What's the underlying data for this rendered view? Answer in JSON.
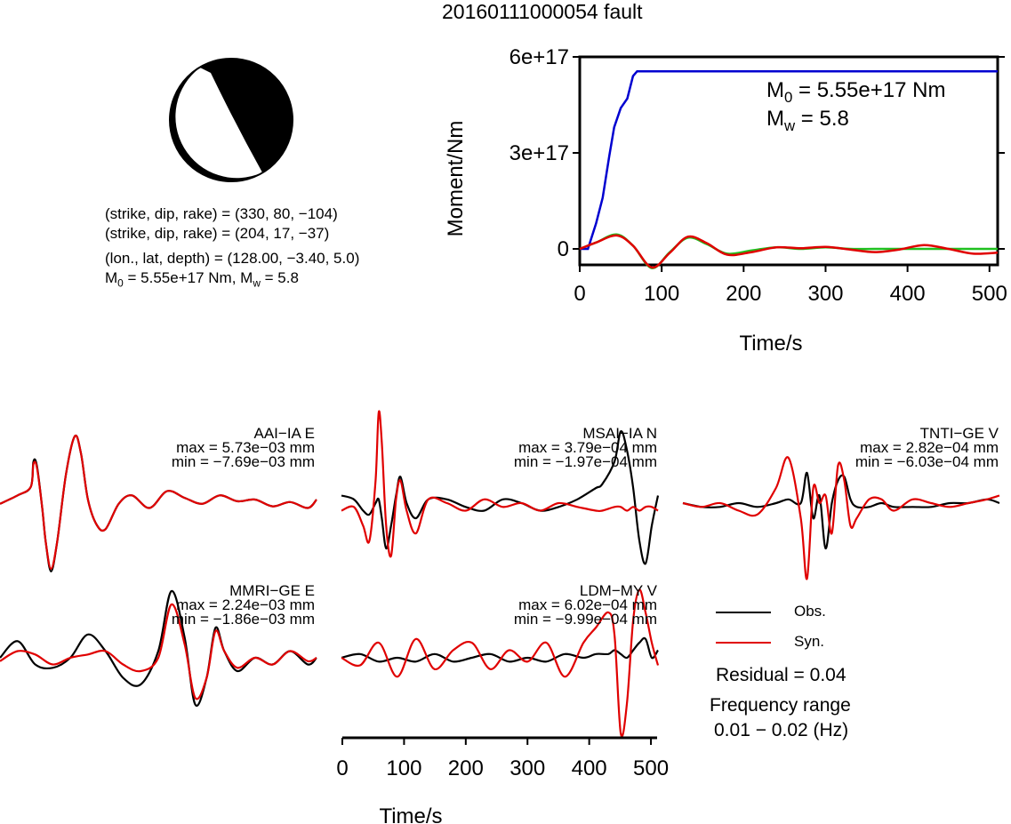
{
  "title": "20160111000054 fault",
  "focal": {
    "plane1": "(strike, dip, rake) = (330, 80, −104)",
    "plane2": "(strike, dip, rake) = (204, 17, −37)",
    "location": "(lon., lat, depth) = (128.00, −3.40, 5.0)",
    "m0_prefix": "M",
    "m0_sub": "0",
    "m0_rest": " = 5.55e+17 Nm, M",
    "mw_sub": "w",
    "mw_rest": " = 5.8"
  },
  "moment_annotation": {
    "m0_prefix": "M",
    "m0_sub": "0",
    "m0_rest": " = 5.55e+17 Nm",
    "mw_prefix": "M",
    "mw_sub": "w",
    "mw_rest": " = 5.8"
  },
  "stations": [
    {
      "name": "AAI−IA E",
      "max": "max = 5.73e−03 mm",
      "min": "min = −7.69e−03 mm"
    },
    {
      "name": "MSAI−IA N",
      "max": "max = 3.79e−04 mm",
      "min": "min = −1.97e−04 mm"
    },
    {
      "name": "TNTI−GE V",
      "max": "max = 2.82e−04 mm",
      "min": "min = −6.03e−04 mm"
    },
    {
      "name": "MMRI−GE E",
      "max": "max = 2.24e−03 mm",
      "min": "min = −1.86e−03 mm"
    },
    {
      "name": "LDM−MY V",
      "max": "max = 6.02e−04 mm",
      "min": "min = −9.99e−04 mm"
    }
  ],
  "legend": {
    "obs": "Obs.",
    "syn": "Syn."
  },
  "residual": "Residual = 0.04",
  "freq_label": "Frequency range",
  "freq_value": "0.01 − 0.02 (Hz)",
  "colors": {
    "obs": "#000000",
    "syn": "#e00000",
    "moment": "#0000d0",
    "green": "#20c020"
  },
  "chart_data": [
    {
      "type": "line",
      "title": "",
      "xlabel": "Time/s",
      "ylabel": "Moment/Nm",
      "xlim": [
        0,
        510
      ],
      "ylim": [
        -5e+16,
        6e+17
      ],
      "xticks": [
        0,
        100,
        200,
        300,
        400,
        500
      ],
      "yticks": [
        0,
        3e+17,
        6e+17
      ],
      "ytick_labels": [
        "0",
        "3e+17",
        "6e+17"
      ],
      "series": [
        {
          "x": [
            0,
            10,
            20,
            28,
            36,
            42,
            50,
            58,
            65,
            70,
            510
          ],
          "values": [
            0,
            0,
            8e+16,
            1.6e+17,
            2.9e+17,
            3.8e+17,
            4.4e+17,
            4.7e+17,
            5.4e+17,
            5.55e+17,
            5.55e+17
          ]
        },
        {
          "x": [
            0,
            20,
            45,
            65,
            88,
            110,
            132,
            155,
            180,
            210,
            240,
            270,
            300,
            330,
            360,
            390,
            420,
            450,
            480,
            510
          ],
          "values": [
            0,
            2e+16,
            4.5e+16,
            1e+16,
            -6e+16,
            -1e+16,
            3.5e+16,
            1.5e+16,
            -1.5e+16,
            -5000000000000000.0,
            5000000000000000.0,
            0.0,
            5000000000000000.0,
            0.0,
            0.0,
            0.0,
            0.0,
            0.0,
            0.0,
            0.0
          ]
        },
        {
          "x": [
            0,
            20,
            45,
            65,
            88,
            110,
            132,
            155,
            180,
            210,
            240,
            270,
            300,
            330,
            360,
            390,
            420,
            450,
            480,
            510
          ],
          "values": [
            0,
            2e+16,
            4.2e+16,
            1e+16,
            -5.8e+16,
            -1.2e+16,
            3.8e+16,
            1.8e+16,
            -1.8e+16,
            -1e+16,
            5000000000000000.0,
            2000000000000000.0,
            6000000000000000.0,
            -2000000000000000.0,
            -1e+16,
            -2000000000000000.0,
            1.2e+16,
            0.0,
            -1.5e+16,
            -1.2e+16
          ]
        }
      ]
    },
    {
      "type": "line",
      "xlabel": "Time/s",
      "xlim": [
        0,
        510
      ],
      "xticks": [
        0,
        100,
        200,
        300,
        400,
        500
      ],
      "traces": [
        {
          "station": "AAI-IA E",
          "x": [
            0,
            20,
            35,
            38,
            42,
            48,
            52,
            58,
            65,
            75,
            85,
            92,
            100,
            110,
            120,
            135,
            150,
            170,
            190,
            210,
            230,
            250,
            270,
            290,
            310,
            330,
            350,
            360
          ],
          "obs": [
            -0.05,
            0.05,
            0.15,
            0.45,
            0.4,
            -0.1,
            -0.5,
            -0.85,
            -0.5,
            0.3,
            0.75,
            0.55,
            0.0,
            -0.3,
            -0.35,
            -0.05,
            0.05,
            -0.1,
            0.1,
            0.02,
            -0.05,
            0.05,
            -0.02,
            0.0,
            -0.08,
            -0.03,
            -0.1,
            0.0
          ],
          "syn": [
            -0.05,
            0.05,
            0.15,
            0.42,
            0.38,
            -0.1,
            -0.5,
            -0.82,
            -0.5,
            0.3,
            0.75,
            0.55,
            0.0,
            -0.3,
            -0.35,
            -0.05,
            0.05,
            -0.1,
            0.1,
            0.02,
            -0.05,
            0.05,
            -0.02,
            0.0,
            -0.08,
            -0.03,
            -0.1,
            0.0
          ]
        },
        {
          "station": "MSAI-IA N",
          "x": [
            0,
            20,
            35,
            45,
            55,
            60,
            65,
            72,
            80,
            88,
            95,
            105,
            120,
            140,
            170,
            200,
            230,
            260,
            290,
            320,
            350,
            380,
            410,
            420,
            440,
            450,
            460,
            470,
            480,
            490,
            500,
            510
          ],
          "obs": [
            0.1,
            0.05,
            -0.1,
            -0.15,
            0.0,
            0.05,
            -0.2,
            -0.6,
            -0.3,
            0.1,
            0.35,
            0.0,
            -0.2,
            0.05,
            0.05,
            -0.05,
            -0.1,
            0.05,
            0.0,
            -0.1,
            -0.05,
            0.05,
            0.2,
            0.25,
            0.55,
            0.95,
            0.7,
            0.2,
            -0.5,
            -0.8,
            -0.3,
            0.1
          ],
          "syn": [
            -0.1,
            -0.05,
            -0.3,
            -0.5,
            0.3,
            1.2,
            0.8,
            -0.3,
            -0.7,
            0.05,
            0.3,
            -0.1,
            -0.4,
            0.05,
            0.0,
            -0.1,
            0.05,
            -0.05,
            0.0,
            -0.1,
            0.0,
            -0.05,
            -0.1,
            -0.1,
            -0.05,
            -0.05,
            -0.1,
            -0.05,
            -0.1,
            -0.05,
            -0.05,
            -0.1
          ]
        },
        {
          "station": "TNTI-GE V",
          "x": [
            0,
            30,
            60,
            90,
            120,
            150,
            170,
            190,
            200,
            210,
            220,
            230,
            240,
            250,
            260,
            270,
            280,
            300,
            320,
            340,
            370,
            400,
            430,
            460,
            490,
            510
          ],
          "obs": [
            0.0,
            -0.05,
            -0.05,
            0.0,
            -0.05,
            0.0,
            0.05,
            0.0,
            0.4,
            -0.2,
            0.1,
            -0.6,
            0.0,
            0.3,
            0.35,
            0.05,
            -0.05,
            -0.05,
            0.0,
            -0.05,
            -0.05,
            -0.05,
            0.0,
            0.0,
            0.05,
            0.0
          ],
          "syn": [
            0.0,
            -0.05,
            0.0,
            -0.1,
            -0.15,
            0.2,
            0.6,
            -0.2,
            -1.0,
            0.2,
            0.0,
            0.1,
            -0.4,
            0.5,
            0.3,
            -0.3,
            -0.2,
            0.05,
            0.05,
            -0.1,
            0.05,
            0.0,
            -0.05,
            0.0,
            0.05,
            0.1
          ]
        },
        {
          "station": "MMRI-GE E",
          "x": [
            0,
            20,
            40,
            60,
            80,
            100,
            120,
            140,
            160,
            180,
            195,
            210,
            222,
            235,
            245,
            255,
            270,
            290,
            310,
            330,
            350,
            360
          ],
          "obs": [
            0.0,
            0.25,
            -0.1,
            -0.15,
            0.0,
            0.35,
            0.1,
            -0.3,
            -0.4,
            0.1,
            1.0,
            0.3,
            -0.7,
            -0.3,
            0.45,
            0.1,
            -0.2,
            0.0,
            -0.1,
            0.1,
            -0.1,
            0.0
          ],
          "syn": [
            -0.05,
            0.1,
            0.05,
            -0.1,
            0.0,
            0.05,
            0.1,
            -0.1,
            -0.2,
            0.0,
            0.8,
            0.2,
            -0.6,
            -0.3,
            0.4,
            0.1,
            -0.15,
            0.0,
            -0.1,
            0.1,
            -0.05,
            0.0
          ]
        },
        {
          "station": "LDM-MY V",
          "x": [
            0,
            30,
            60,
            90,
            120,
            150,
            180,
            210,
            240,
            270,
            300,
            330,
            360,
            390,
            410,
            430,
            440,
            450,
            460,
            470,
            480,
            490,
            500,
            510
          ],
          "obs": [
            0.0,
            0.05,
            -0.05,
            0.0,
            -0.05,
            0.05,
            -0.05,
            0.0,
            0.05,
            -0.05,
            0.0,
            -0.05,
            0.05,
            0.0,
            0.05,
            0.05,
            0.1,
            0.05,
            0.0,
            0.1,
            0.2,
            0.25,
            0.0,
            0.1
          ],
          "syn": [
            0.0,
            -0.1,
            0.2,
            -0.25,
            0.25,
            -0.15,
            0.1,
            0.2,
            -0.15,
            0.1,
            -0.05,
            0.2,
            -0.25,
            0.2,
            0.4,
            0.6,
            0.3,
            -1.0,
            -0.6,
            0.5,
            0.9,
            0.6,
            0.2,
            -0.1
          ]
        }
      ]
    }
  ]
}
